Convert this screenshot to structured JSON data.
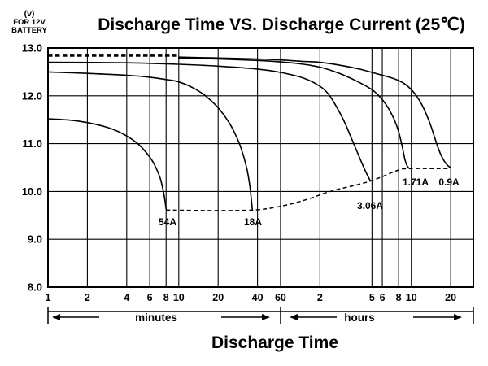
{
  "title": "Discharge Time VS. Discharge Current (25℃)",
  "y_axis_unit": {
    "line1": "(v)",
    "line2": "FOR 12V",
    "line3": "BATTERY"
  },
  "y_axis": {
    "ticks": [
      {
        "v": 13,
        "label": "13.0"
      },
      {
        "v": 12,
        "label": "12.0"
      },
      {
        "v": 11,
        "label": "11.0"
      },
      {
        "v": 10,
        "label": "10.0"
      },
      {
        "v": 9,
        "label": "9.0"
      },
      {
        "v": 8,
        "label": "8.0"
      }
    ]
  },
  "x_axis": {
    "label": "Discharge Time",
    "minutes_label": "minutes",
    "hours_label": "hours",
    "ticks": [
      {
        "t": 1,
        "label": "1"
      },
      {
        "t": 2,
        "label": "2"
      },
      {
        "t": 4,
        "label": "4"
      },
      {
        "t": 6,
        "label": "6"
      },
      {
        "t": 8,
        "label": "8"
      },
      {
        "t": 10,
        "label": "10"
      },
      {
        "t": 20,
        "label": "20"
      },
      {
        "t": 40,
        "label": "40"
      },
      {
        "t": 60,
        "label": "60"
      },
      {
        "t": 120,
        "label": "2"
      },
      {
        "t": 300,
        "label": "5"
      },
      {
        "t": 360,
        "label": "6"
      },
      {
        "t": 480,
        "label": "8"
      },
      {
        "t": 600,
        "label": "10"
      },
      {
        "t": 1200,
        "label": "20"
      }
    ]
  },
  "chart_data": {
    "type": "line",
    "title": "Discharge Time VS. Discharge Current (25℃)",
    "xlabel": "Discharge Time",
    "ylabel": "(v) FOR 12V BATTERY",
    "x_scale": "log",
    "x_unit": "minutes",
    "x_range_minutes": [
      1,
      1780
    ],
    "y_range_volts": [
      8.0,
      13.0
    ],
    "grid": true,
    "series": [
      {
        "name": "54A",
        "style": "solid",
        "points": [
          [
            1,
            11.52
          ],
          [
            1.5,
            11.49
          ],
          [
            2,
            11.44
          ],
          [
            2.6,
            11.37
          ],
          [
            3.2,
            11.29
          ],
          [
            4,
            11.16
          ],
          [
            5,
            10.97
          ],
          [
            6,
            10.72
          ],
          [
            6.6,
            10.53
          ],
          [
            7.2,
            10.28
          ],
          [
            7.6,
            10.02
          ],
          [
            7.85,
            9.8
          ],
          [
            8,
            9.63
          ]
        ]
      },
      {
        "name": "18A",
        "style": "solid",
        "points": [
          [
            1,
            12.5
          ],
          [
            2,
            12.47
          ],
          [
            4,
            12.43
          ],
          [
            6,
            12.39
          ],
          [
            8,
            12.34
          ],
          [
            10,
            12.29
          ],
          [
            13,
            12.16
          ],
          [
            16,
            12.0
          ],
          [
            20,
            11.75
          ],
          [
            24,
            11.46
          ],
          [
            27,
            11.2
          ],
          [
            30,
            10.9
          ],
          [
            33,
            10.5
          ],
          [
            35,
            10.1
          ],
          [
            36.5,
            9.63
          ]
        ]
      },
      {
        "name": "3.06A",
        "style": "solid",
        "points": [
          [
            1,
            12.7
          ],
          [
            4,
            12.69
          ],
          [
            10,
            12.66
          ],
          [
            20,
            12.62
          ],
          [
            40,
            12.56
          ],
          [
            60,
            12.49
          ],
          [
            90,
            12.37
          ],
          [
            120,
            12.2
          ],
          [
            140,
            12.03
          ],
          [
            160,
            11.78
          ],
          [
            185,
            11.45
          ],
          [
            210,
            11.1
          ],
          [
            235,
            10.78
          ],
          [
            258,
            10.52
          ],
          [
            278,
            10.33
          ],
          [
            292,
            10.22
          ]
        ]
      },
      {
        "name": "1.71A",
        "style": "solid",
        "points": [
          [
            10,
            12.79
          ],
          [
            20,
            12.77
          ],
          [
            40,
            12.74
          ],
          [
            60,
            12.71
          ],
          [
            90,
            12.66
          ],
          [
            120,
            12.6
          ],
          [
            150,
            12.52
          ],
          [
            180,
            12.44
          ],
          [
            240,
            12.28
          ],
          [
            300,
            12.13
          ],
          [
            330,
            12.03
          ],
          [
            360,
            11.92
          ],
          [
            390,
            11.79
          ],
          [
            420,
            11.64
          ],
          [
            450,
            11.47
          ],
          [
            480,
            11.25
          ],
          [
            510,
            10.95
          ],
          [
            535,
            10.68
          ],
          [
            552,
            10.56
          ],
          [
            570,
            10.5
          ]
        ]
      },
      {
        "name": "0.9A",
        "style": "solid",
        "points": [
          [
            10,
            12.81
          ],
          [
            20,
            12.79
          ],
          [
            40,
            12.77
          ],
          [
            60,
            12.75
          ],
          [
            90,
            12.72
          ],
          [
            120,
            12.7
          ],
          [
            180,
            12.63
          ],
          [
            240,
            12.56
          ],
          [
            300,
            12.49
          ],
          [
            360,
            12.43
          ],
          [
            420,
            12.38
          ],
          [
            480,
            12.32
          ],
          [
            540,
            12.24
          ],
          [
            600,
            12.13
          ],
          [
            660,
            11.99
          ],
          [
            720,
            11.82
          ],
          [
            780,
            11.62
          ],
          [
            840,
            11.4
          ],
          [
            900,
            11.15
          ],
          [
            960,
            10.92
          ],
          [
            1020,
            10.74
          ],
          [
            1080,
            10.62
          ],
          [
            1140,
            10.54
          ],
          [
            1192,
            10.5
          ]
        ]
      }
    ],
    "reference_lines": [
      {
        "name": "open-circuit-voltage",
        "style": "dashed-bold",
        "points": [
          [
            1,
            12.84
          ],
          [
            10,
            12.84
          ]
        ]
      },
      {
        "name": "cutoff-voltage-locus",
        "style": "dashed",
        "points": [
          [
            8,
            9.61
          ],
          [
            20,
            9.6
          ],
          [
            36.5,
            9.61
          ],
          [
            50,
            9.65
          ],
          [
            70,
            9.73
          ],
          [
            100,
            9.85
          ],
          [
            132,
            9.97
          ],
          [
            180,
            10.07
          ],
          [
            240,
            10.15
          ],
          [
            292,
            10.22
          ],
          [
            360,
            10.31
          ],
          [
            420,
            10.39
          ],
          [
            470,
            10.44
          ],
          [
            510,
            10.47
          ],
          [
            600,
            10.48
          ],
          [
            800,
            10.48
          ],
          [
            1000,
            10.48
          ],
          [
            1192,
            10.48
          ]
        ]
      }
    ],
    "curve_labels": [
      "54A",
      "18A",
      "3.06A",
      "1.71A",
      "0.9A"
    ]
  },
  "colors": {
    "ink": "#000000",
    "background": "#ffffff"
  }
}
